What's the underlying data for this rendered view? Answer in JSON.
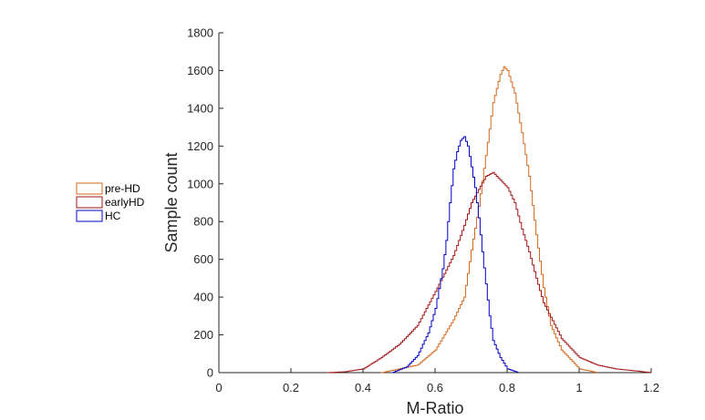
{
  "chart_data": {
    "type": "histogram",
    "xlabel": "M-Ratio",
    "ylabel": "Sample count",
    "xlim": [
      0,
      1.2
    ],
    "ylim": [
      0,
      1800
    ],
    "x_ticks": [
      "0",
      "0.2",
      "0.4",
      "0.6",
      "0.8",
      "1",
      "1.2"
    ],
    "y_ticks": [
      "0",
      "200",
      "400",
      "600",
      "800",
      "1000",
      "1200",
      "1400",
      "1600",
      "1800"
    ],
    "grid": false,
    "legend_position": "left",
    "series": [
      {
        "name": "pre-HD",
        "color": "#D2691E",
        "points": [
          [
            0.45,
            0
          ],
          [
            0.5,
            20
          ],
          [
            0.55,
            40
          ],
          [
            0.6,
            120
          ],
          [
            0.65,
            280
          ],
          [
            0.68,
            400
          ],
          [
            0.7,
            650
          ],
          [
            0.72,
            880
          ],
          [
            0.74,
            1150
          ],
          [
            0.76,
            1430
          ],
          [
            0.78,
            1580
          ],
          [
            0.79,
            1620
          ],
          [
            0.8,
            1600
          ],
          [
            0.82,
            1480
          ],
          [
            0.84,
            1270
          ],
          [
            0.86,
            1040
          ],
          [
            0.88,
            730
          ],
          [
            0.9,
            450
          ],
          [
            0.92,
            250
          ],
          [
            0.95,
            120
          ],
          [
            0.98,
            60
          ],
          [
            1.0,
            20
          ],
          [
            1.05,
            0
          ]
        ]
      },
      {
        "name": "earlyHD",
        "color": "#A31515",
        "points": [
          [
            0.3,
            0
          ],
          [
            0.35,
            5
          ],
          [
            0.4,
            20
          ],
          [
            0.45,
            80
          ],
          [
            0.5,
            150
          ],
          [
            0.55,
            250
          ],
          [
            0.6,
            430
          ],
          [
            0.65,
            620
          ],
          [
            0.68,
            780
          ],
          [
            0.7,
            900
          ],
          [
            0.72,
            970
          ],
          [
            0.74,
            1040
          ],
          [
            0.76,
            1060
          ],
          [
            0.78,
            1020
          ],
          [
            0.8,
            980
          ],
          [
            0.82,
            900
          ],
          [
            0.84,
            760
          ],
          [
            0.86,
            640
          ],
          [
            0.88,
            500
          ],
          [
            0.9,
            370
          ],
          [
            0.95,
            180
          ],
          [
            1.0,
            80
          ],
          [
            1.05,
            40
          ],
          [
            1.1,
            20
          ],
          [
            1.15,
            10
          ],
          [
            1.2,
            0
          ]
        ]
      },
      {
        "name": "HC",
        "color": "#0000C8",
        "points": [
          [
            0.48,
            0
          ],
          [
            0.52,
            30
          ],
          [
            0.55,
            90
          ],
          [
            0.58,
            210
          ],
          [
            0.6,
            340
          ],
          [
            0.62,
            550
          ],
          [
            0.63,
            700
          ],
          [
            0.64,
            900
          ],
          [
            0.65,
            1080
          ],
          [
            0.66,
            1170
          ],
          [
            0.67,
            1230
          ],
          [
            0.68,
            1250
          ],
          [
            0.69,
            1200
          ],
          [
            0.7,
            1090
          ],
          [
            0.71,
            980
          ],
          [
            0.72,
            820
          ],
          [
            0.73,
            640
          ],
          [
            0.74,
            470
          ],
          [
            0.75,
            300
          ],
          [
            0.76,
            170
          ],
          [
            0.78,
            80
          ],
          [
            0.8,
            20
          ],
          [
            0.83,
            0
          ]
        ]
      }
    ]
  }
}
